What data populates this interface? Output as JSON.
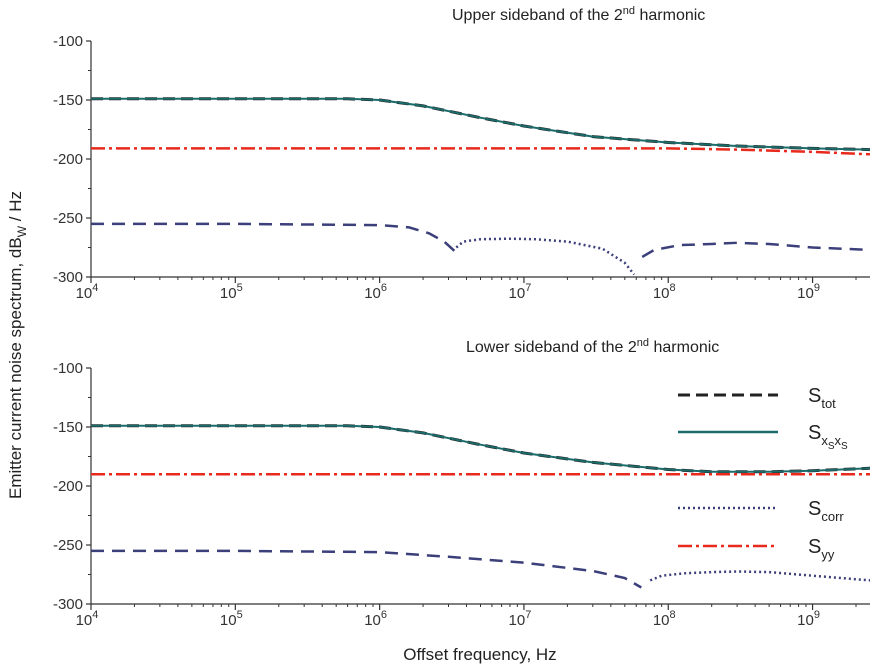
{
  "chart_data": [
    {
      "type": "line",
      "title": {
        "prefix": "Upper sideband of the 2",
        "sup": "nd",
        "suffix": " harmonic"
      },
      "x_scale": "log",
      "xlim": [
        10000,
        2500000000
      ],
      "ylim": [
        -300,
        -100
      ],
      "x_ticks": [
        {
          "base": "10",
          "exp": "4"
        },
        {
          "base": "10",
          "exp": "5"
        },
        {
          "base": "10",
          "exp": "6"
        },
        {
          "base": "10",
          "exp": "7"
        },
        {
          "base": "10",
          "exp": "8"
        },
        {
          "base": "10",
          "exp": "9"
        }
      ],
      "y_ticks": [
        "-100",
        "-150",
        "-200",
        "-250",
        "-300"
      ],
      "series": [
        {
          "key": "s_tot",
          "color": "#222222",
          "dash": "12,6",
          "width": 3,
          "x": [
            10000,
            100000,
            600000,
            1000000,
            2000000,
            5000000,
            10000000,
            30000000,
            100000000,
            300000000,
            1000000000,
            2500000000
          ],
          "y": [
            -149,
            -149,
            -149,
            -150,
            -155,
            -165,
            -172,
            -181,
            -186,
            -189,
            -191,
            -192
          ]
        },
        {
          "key": "s_xsxs",
          "color": "#1c6b6b",
          "dash": "",
          "width": 2,
          "x": [
            10000,
            100000,
            600000,
            1000000,
            2000000,
            5000000,
            10000000,
            30000000,
            100000000,
            300000000,
            1000000000,
            2500000000
          ],
          "y": [
            -149,
            -149,
            -149,
            -150,
            -155,
            -165,
            -172,
            -181,
            -186,
            -189,
            -191,
            -192
          ]
        },
        {
          "key": "s_corr_dash_a",
          "color": "#3b3f7a",
          "dash": "13,8",
          "width": 2.5,
          "x": [
            10000,
            100000,
            1000000,
            1600000,
            2200000,
            2800000,
            3300000
          ],
          "y": [
            -255,
            -255,
            -256,
            -258,
            -263,
            -270,
            -278
          ]
        },
        {
          "key": "s_corr_dot",
          "color": "#3b3f7a",
          "dash": "2,3",
          "width": 2.5,
          "x": [
            3400000,
            3800000,
            5000000,
            8000000,
            12000000,
            20000000,
            35000000,
            50000000,
            58000000
          ],
          "y": [
            -275,
            -270,
            -268,
            -267.5,
            -268,
            -270,
            -276,
            -288,
            -298
          ]
        },
        {
          "key": "s_corr_dash_b",
          "color": "#3b3f7a",
          "dash": "13,8",
          "width": 2.5,
          "x": [
            66000000,
            80000000,
            120000000,
            200000000,
            300000000,
            500000000,
            1000000000,
            2500000000
          ],
          "y": [
            -283,
            -277,
            -273,
            -272,
            -271,
            -272,
            -275,
            -277
          ]
        },
        {
          "key": "s_yy",
          "color": "#e8291c",
          "dash": "14,4,3,4",
          "width": 2.5,
          "x": [
            10000,
            100000,
            1000000,
            10000000,
            100000000,
            300000000,
            1000000000,
            2500000000
          ],
          "y": [
            -191,
            -191,
            -191,
            -191,
            -191,
            -192,
            -194,
            -196
          ]
        }
      ]
    },
    {
      "type": "line",
      "title": {
        "prefix": "Lower sideband of the 2",
        "sup": "nd",
        "suffix": " harmonic"
      },
      "x_scale": "log",
      "xlim": [
        10000,
        2500000000
      ],
      "ylim": [
        -300,
        -100
      ],
      "x_ticks": [
        {
          "base": "10",
          "exp": "4"
        },
        {
          "base": "10",
          "exp": "5"
        },
        {
          "base": "10",
          "exp": "6"
        },
        {
          "base": "10",
          "exp": "7"
        },
        {
          "base": "10",
          "exp": "8"
        },
        {
          "base": "10",
          "exp": "9"
        }
      ],
      "y_ticks": [
        "-100",
        "-150",
        "-200",
        "-250",
        "-300"
      ],
      "series": [
        {
          "key": "s_tot",
          "color": "#222222",
          "dash": "12,6",
          "width": 3,
          "x": [
            10000,
            100000,
            600000,
            1000000,
            2000000,
            5000000,
            10000000,
            30000000,
            100000000,
            200000000,
            500000000,
            1000000000,
            2500000000
          ],
          "y": [
            -149,
            -149,
            -149,
            -150,
            -155,
            -165,
            -172,
            -180,
            -186,
            -188,
            -188,
            -187,
            -185
          ]
        },
        {
          "key": "s_xsxs",
          "color": "#1c6b6b",
          "dash": "",
          "width": 2,
          "x": [
            10000,
            100000,
            600000,
            1000000,
            2000000,
            5000000,
            10000000,
            30000000,
            100000000,
            200000000,
            500000000,
            1000000000,
            2500000000
          ],
          "y": [
            -149,
            -149,
            -149,
            -150,
            -155,
            -165,
            -172,
            -180,
            -186,
            -188,
            -188,
            -187,
            -185
          ]
        },
        {
          "key": "s_corr_dash",
          "color": "#3b3f7a",
          "dash": "13,8",
          "width": 2.5,
          "x": [
            10000,
            100000,
            1000000,
            3000000,
            10000000,
            30000000,
            50000000,
            65000000
          ],
          "y": [
            -255,
            -255,
            -256,
            -260,
            -265,
            -272,
            -278,
            -286
          ]
        },
        {
          "key": "s_corr_dot",
          "color": "#3b3f7a",
          "dash": "2,3",
          "width": 2.5,
          "x": [
            75000000,
            90000000,
            130000000,
            200000000,
            300000000,
            500000000,
            1000000000,
            2500000000
          ],
          "y": [
            -280,
            -276,
            -274,
            -273,
            -272.5,
            -273,
            -276,
            -280
          ]
        },
        {
          "key": "s_yy",
          "color": "#e8291c",
          "dash": "14,4,3,4",
          "width": 2.5,
          "x": [
            10000,
            100000,
            1000000,
            10000000,
            100000000,
            300000000,
            1000000000,
            2500000000
          ],
          "y": [
            -190,
            -190,
            -190,
            -190,
            -190,
            -190,
            -190,
            -190
          ]
        }
      ]
    }
  ],
  "axes": {
    "ylabel": {
      "prefix": "Emitter current noise spectrum, dB",
      "sub": "W",
      "suffix": " / Hz"
    },
    "xlabel": "Offset frequency, Hz"
  },
  "legend": {
    "placement": "right, lower panel",
    "items": [
      {
        "key": "s_tot",
        "main": "S",
        "sub": "tot",
        "color": "#222222",
        "dash": "12,6",
        "width": 3
      },
      {
        "key": "s_xsxs",
        "main": "S",
        "sub": "x",
        "subsub": "S",
        "sub2": "x",
        "subsub2": "S",
        "color": "#1c6b6b",
        "dash": "",
        "width": 2.5
      },
      {
        "key": "s_corr",
        "main": "S",
        "sub": "corr",
        "color": "#3b3f7a",
        "dash": "2,3",
        "width": 2.5
      },
      {
        "key": "s_yy",
        "main": "S",
        "sub": "yy",
        "color": "#e8291c",
        "dash": "14,4,3,4",
        "width": 2.5
      }
    ]
  }
}
